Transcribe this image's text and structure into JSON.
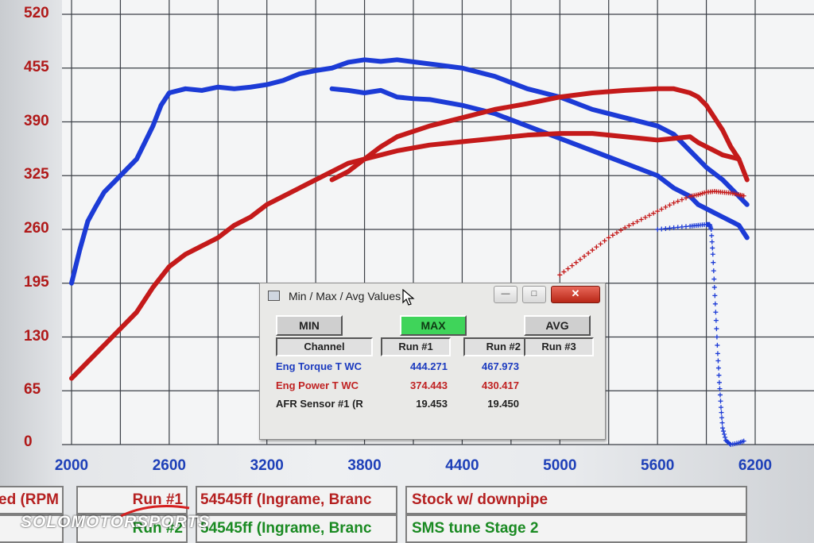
{
  "chart_data": {
    "type": "scatter",
    "title": "",
    "xlabel": "",
    "ylabel": "",
    "xlim": [
      2000,
      6200
    ],
    "ylim": [
      0,
      520
    ],
    "x_ticks": [
      "2000",
      "2600",
      "3200",
      "3800",
      "4400",
      "5000",
      "5600",
      "6200"
    ],
    "y_ticks": [
      "520",
      "455",
      "390",
      "325",
      "260",
      "195",
      "130",
      "65",
      "0"
    ],
    "series": [
      {
        "color": "#1c3bd6",
        "x": [
          2000,
          2050,
          2100,
          2150,
          2200,
          2300,
          2400,
          2500,
          2550,
          2600,
          2700,
          2800,
          2900,
          3000,
          3100,
          3200,
          3300,
          3400,
          3500,
          3600,
          3700,
          3800,
          3900,
          4000,
          4200,
          4400,
          4600,
          4800,
          5000,
          5200,
          5400,
          5600,
          5700,
          5800,
          5900,
          6000,
          6100,
          6150
        ],
        "y": [
          195,
          235,
          270,
          288,
          305,
          325,
          345,
          385,
          410,
          425,
          430,
          428,
          432,
          430,
          432,
          435,
          440,
          448,
          452,
          455,
          462,
          465,
          463,
          465,
          460,
          455,
          445,
          430,
          420,
          405,
          395,
          385,
          375,
          355,
          335,
          320,
          300,
          290
        ]
      },
      {
        "color": "#1c3bd6",
        "x": [
          3600,
          3700,
          3800,
          3900,
          4000,
          4100,
          4200,
          4400,
          4600,
          4800,
          5000,
          5200,
          5400,
          5600,
          5700,
          5800,
          5850,
          5900,
          5950,
          6000,
          6050,
          6100,
          6150
        ],
        "y": [
          430,
          428,
          425,
          428,
          420,
          418,
          417,
          410,
          400,
          385,
          370,
          355,
          340,
          325,
          310,
          300,
          290,
          285,
          280,
          275,
          270,
          265,
          250
        ]
      },
      {
        "color": "#c41a1a",
        "x": [
          2000,
          2100,
          2200,
          2300,
          2400,
          2500,
          2600,
          2700,
          2800,
          2900,
          3000,
          3100,
          3200,
          3300,
          3400,
          3500,
          3600,
          3700,
          3800,
          3900,
          4000,
          4200,
          4400,
          4600,
          4800,
          5000,
          5200,
          5400,
          5600,
          5700,
          5800,
          5850,
          5900,
          5950,
          6000,
          6100,
          6150
        ],
        "y": [
          80,
          100,
          120,
          140,
          160,
          190,
          215,
          230,
          240,
          250,
          265,
          275,
          290,
          300,
          310,
          320,
          330,
          340,
          345,
          350,
          355,
          362,
          366,
          370,
          374,
          376,
          376,
          372,
          368,
          370,
          372,
          365,
          360,
          355,
          350,
          345,
          320
        ]
      },
      {
        "color": "#c41a1a",
        "x": [
          3600,
          3700,
          3800,
          3900,
          4000,
          4200,
          4400,
          4600,
          4800,
          5000,
          5200,
          5400,
          5600,
          5700,
          5800,
          5850,
          5900,
          5950,
          6000,
          6050,
          6100
        ],
        "y": [
          320,
          330,
          345,
          360,
          372,
          385,
          395,
          405,
          412,
          420,
          425,
          428,
          430,
          430,
          425,
          420,
          410,
          395,
          380,
          360,
          345
        ]
      },
      {
        "color": "#1c3bd6",
        "marker": "+",
        "x": [
          5600,
          5700,
          5800,
          5850,
          5900,
          5920,
          5930,
          5940,
          5950,
          5960,
          5970,
          5980,
          5990,
          6000,
          6020,
          6050,
          6100,
          6140
        ],
        "y": [
          260,
          262,
          264,
          265,
          266,
          266,
          260,
          230,
          190,
          150,
          110,
          75,
          45,
          20,
          5,
          0,
          2,
          5
        ]
      },
      {
        "color": "#c41a1a",
        "marker": "+",
        "x": [
          5000,
          5100,
          5200,
          5300,
          5400,
          5500,
          5600,
          5700,
          5800,
          5850,
          5900,
          5950,
          6000,
          6050,
          6100,
          6140
        ],
        "y": [
          205,
          220,
          235,
          250,
          262,
          272,
          282,
          292,
          300,
          302,
          305,
          306,
          305,
          304,
          302,
          300
        ]
      }
    ]
  },
  "dialog": {
    "title": "Min / Max / Avg Values",
    "min_btn_glyph": "—",
    "max_btn_glyph": "□",
    "close_btn_glyph": "✕",
    "mode_min": "MIN",
    "mode_max": "MAX",
    "mode_avg": "AVG",
    "col_channel": "Channel",
    "col_run1": "Run #1",
    "col_run2": "Run #2",
    "col_run3": "Run #3",
    "rows": [
      {
        "channel": "Eng Torque T WC",
        "run1": "444.271",
        "run2": "467.973"
      },
      {
        "channel": "Eng Power T WC",
        "run1": "374.443",
        "run2": "430.417"
      },
      {
        "channel": "AFR Sensor #1 (R",
        "run1": "19.453",
        "run2": "19.450"
      }
    ]
  },
  "footer": {
    "left_truncated": "ed (RPM",
    "run1_label": "Run #1",
    "run1_file": "54545ff (Ingrame, Branc",
    "run1_desc": "Stock w/ downpipe",
    "run2_label": "Run #2",
    "run2_file": "54545ff (Ingrame, Branc",
    "run2_desc": "SMS tune Stage 2"
  },
  "watermark": "SOLOMOTORSPORTS",
  "colors": {
    "torque": "#1c3bd6",
    "power": "#c41a1a",
    "max_active": "#3fd45a",
    "close": "#c8321f"
  }
}
